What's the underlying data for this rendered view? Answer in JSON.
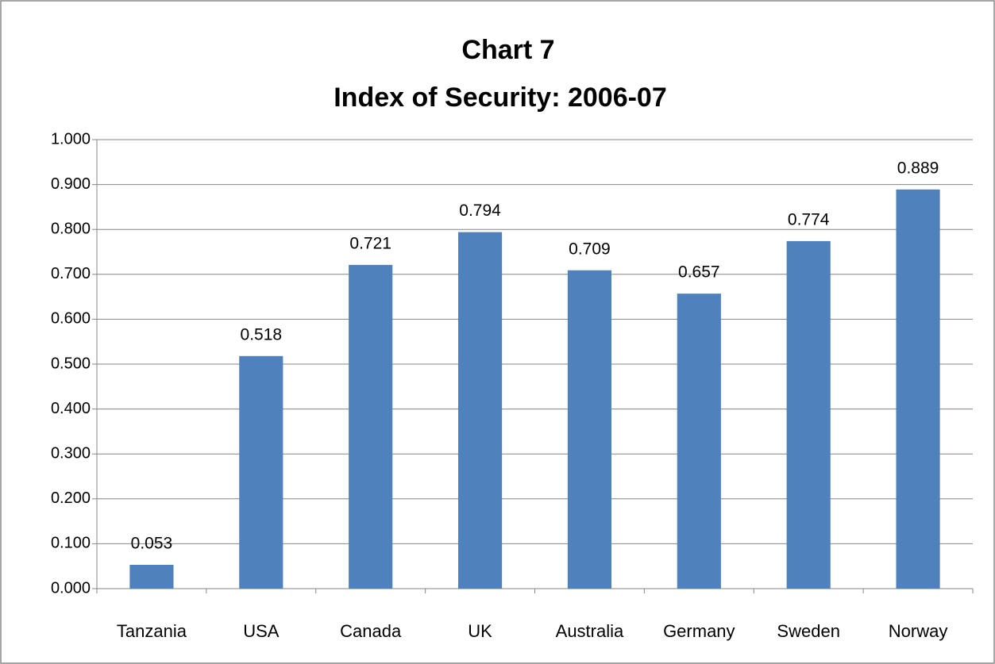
{
  "chart_data": {
    "type": "bar",
    "title": [
      "Chart 7",
      "Index of Security: 2006-07"
    ],
    "categories": [
      "Tanzania",
      "USA",
      "Canada",
      "UK",
      "Australia",
      "Germany",
      "Sweden",
      "Norway"
    ],
    "values": [
      0.053,
      0.518,
      0.721,
      0.794,
      0.709,
      0.657,
      0.774,
      0.889
    ],
    "color": "#4f81bd",
    "ylim": [
      0,
      1
    ],
    "yticks": [
      {
        "value": 0,
        "label": "0.000"
      },
      {
        "value": 0.1,
        "label": "0.100"
      },
      {
        "value": 0.2,
        "label": "0.200"
      },
      {
        "value": 0.3,
        "label": "0.300"
      },
      {
        "value": 0.4,
        "label": "0.400"
      },
      {
        "value": 0.5,
        "label": "0.500"
      },
      {
        "value": 0.6,
        "label": "0.600"
      },
      {
        "value": 0.7,
        "label": "0.700"
      },
      {
        "value": 0.8,
        "label": "0.800"
      },
      {
        "value": 0.9,
        "label": "0.900"
      },
      {
        "value": 1,
        "label": "1.000"
      }
    ],
    "grid": true
  }
}
